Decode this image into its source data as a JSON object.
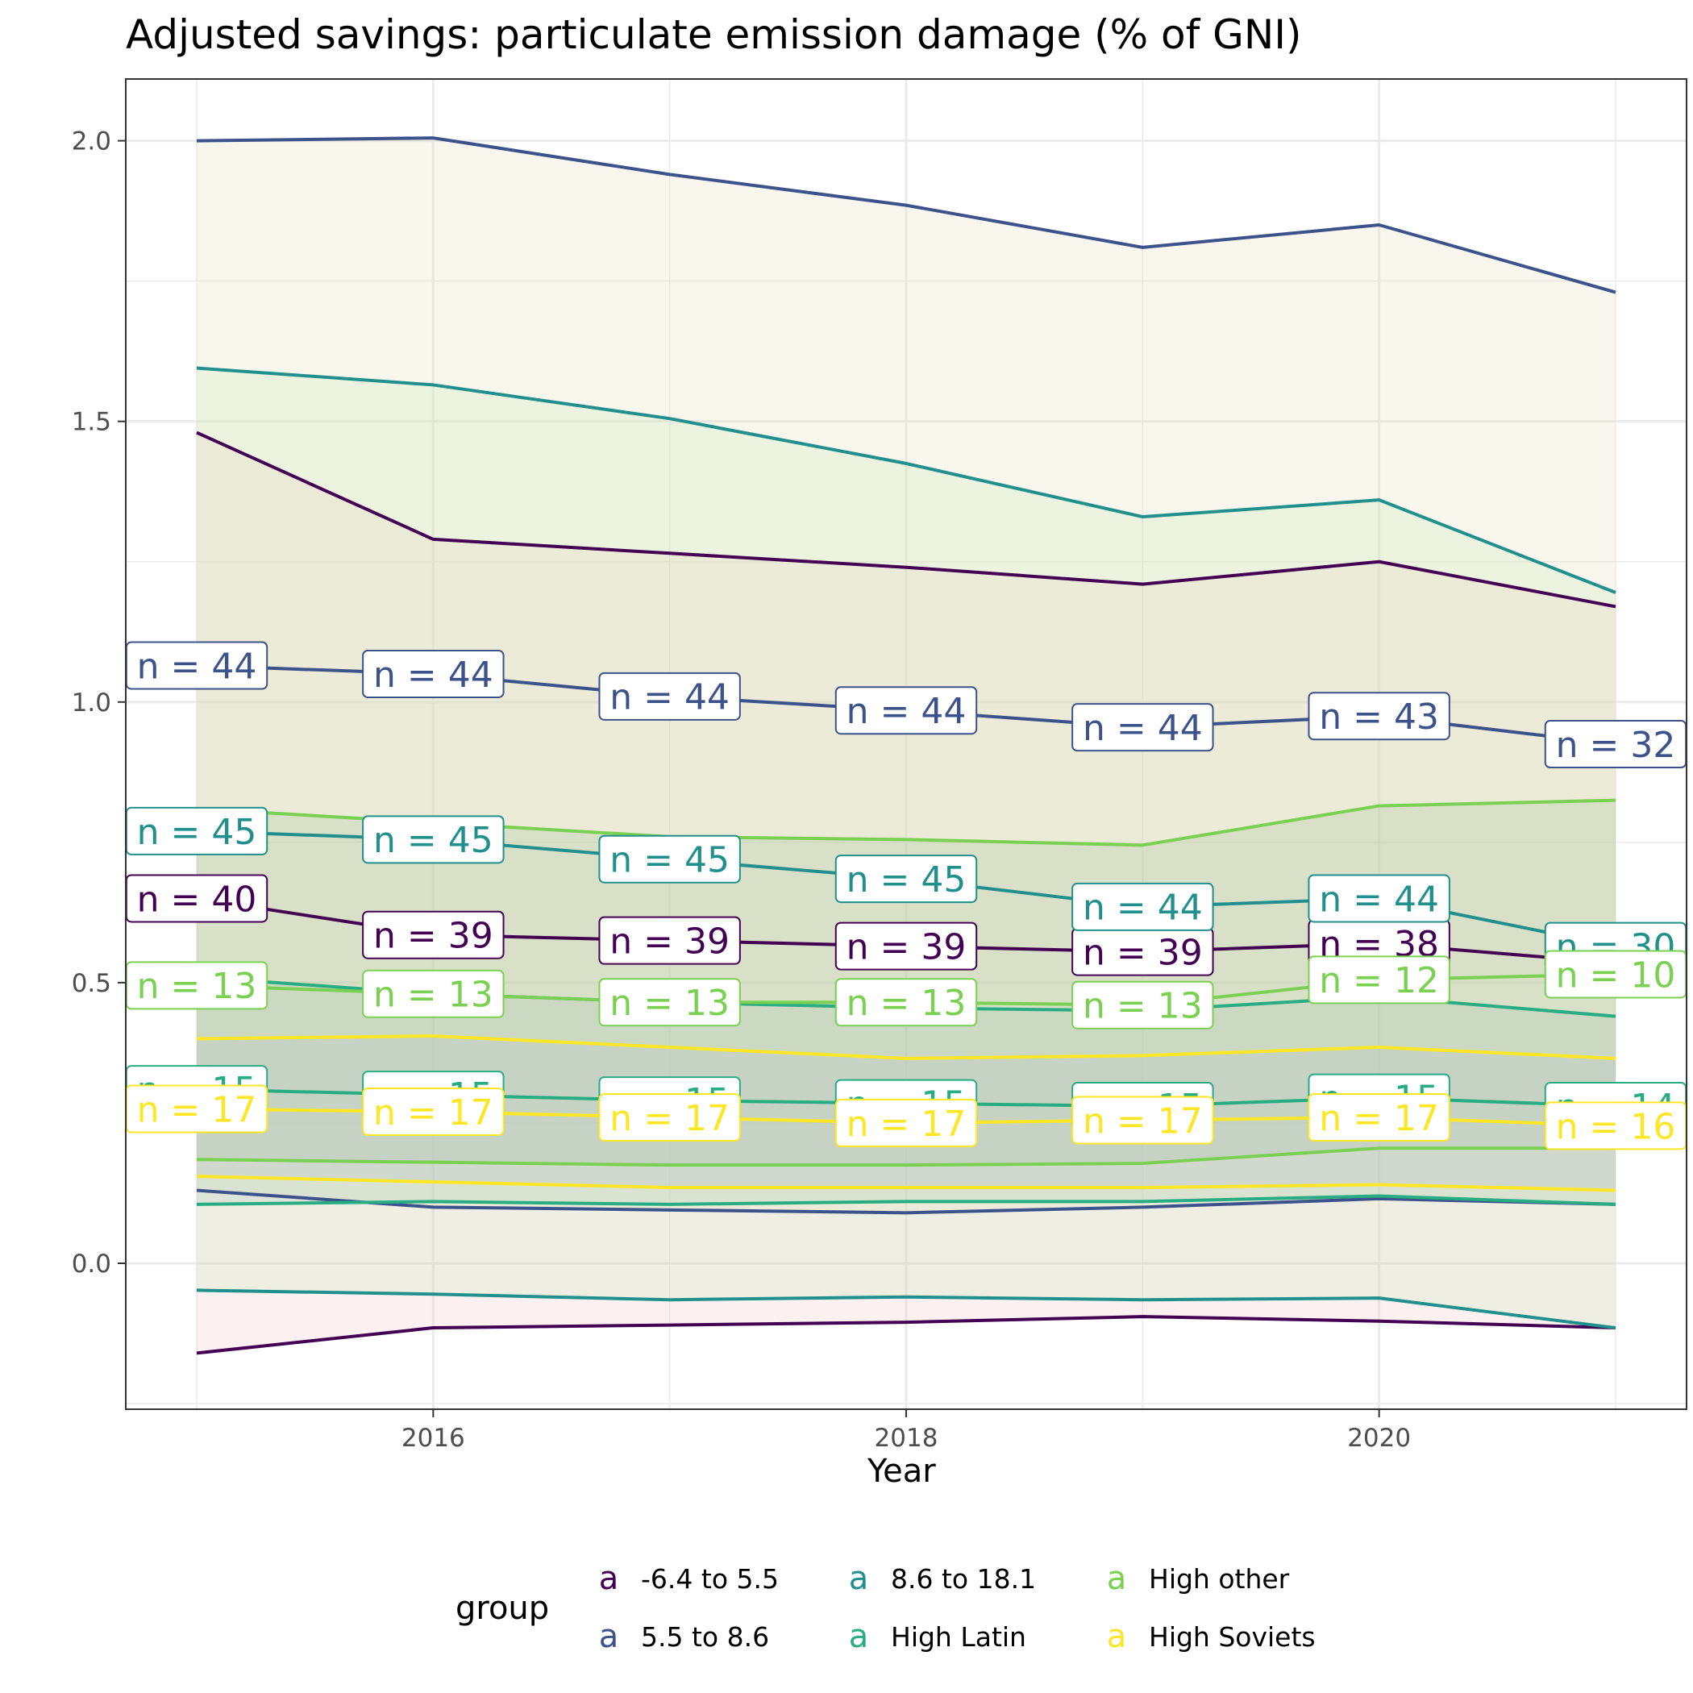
{
  "chart_data": {
    "type": "area",
    "title": "Adjusted savings: particulate emission damage (% of GNI)",
    "xlabel": "Year",
    "ylabel": "",
    "x": [
      2015,
      2016,
      2017,
      2018,
      2019,
      2020,
      2021
    ],
    "xlim": [
      2014.7,
      2021.3
    ],
    "ylim": [
      -0.26,
      2.11
    ],
    "x_ticks": [
      "2016",
      "2018",
      "2020"
    ],
    "x_tick_values": [
      2016,
      2018,
      2020
    ],
    "y_ticks": [
      "0.0",
      "0.5",
      "1.0",
      "1.5",
      "2.0"
    ],
    "y_tick_values": [
      0,
      0.5,
      1.0,
      1.5,
      2.0
    ],
    "grid": true,
    "legend_position": "bottom",
    "legend_title": "group",
    "legend_key_glyph": "a",
    "series": [
      {
        "name": "-6.4 to 5.5",
        "color": "#440154",
        "upper": [
          1.48,
          1.29,
          1.265,
          1.24,
          1.21,
          1.25,
          1.17
        ],
        "mean": [
          0.65,
          0.585,
          0.575,
          0.565,
          0.555,
          0.57,
          0.535
        ],
        "lower": [
          -0.16,
          -0.115,
          -0.11,
          -0.105,
          -0.095,
          -0.103,
          -0.115
        ],
        "n_labels": [
          "n = 40",
          "n = 39",
          "n = 39",
          "n = 39",
          "n = 39",
          "n = 38",
          ""
        ]
      },
      {
        "name": "5.5 to 8.6",
        "color": "#3B528B",
        "upper": [
          2.0,
          2.005,
          1.94,
          1.885,
          1.81,
          1.85,
          1.73
        ],
        "mean": [
          1.065,
          1.05,
          1.01,
          0.985,
          0.955,
          0.975,
          0.925
        ],
        "lower": [
          0.13,
          0.1,
          0.095,
          0.09,
          0.1,
          0.115,
          0.105
        ],
        "n_labels": [
          "n = 44",
          "n = 44",
          "n = 44",
          "n = 44",
          "n = 44",
          "n = 43",
          "n = 32"
        ]
      },
      {
        "name": "8.6 to 18.1",
        "color": "#21908C",
        "upper": [
          1.595,
          1.565,
          1.505,
          1.425,
          1.33,
          1.36,
          1.195
        ],
        "mean": [
          0.77,
          0.755,
          0.72,
          0.685,
          0.635,
          0.65,
          0.565
        ],
        "lower": [
          -0.048,
          -0.055,
          -0.065,
          -0.06,
          -0.065,
          -0.062,
          -0.115
        ],
        "n_labels": [
          "n = 45",
          "n = 45",
          "n = 45",
          "n = 45",
          "n = 44",
          "n = 44",
          "n = 30"
        ]
      },
      {
        "name": "High Latin",
        "color": "#27AD81",
        "upper": [
          0.51,
          0.48,
          0.465,
          0.455,
          0.45,
          0.475,
          0.44
        ],
        "mean": [
          0.31,
          0.3,
          0.29,
          0.285,
          0.28,
          0.295,
          0.28
        ],
        "lower": [
          0.105,
          0.11,
          0.105,
          0.11,
          0.11,
          0.12,
          0.105
        ],
        "n_labels": [
          "n = 15",
          "n = 15",
          "n = 15",
          "n = 15",
          "n = 15",
          "n = 15",
          "n = 14"
        ]
      },
      {
        "name": "High other",
        "color": "#7AD151",
        "upper": [
          0.81,
          0.785,
          0.76,
          0.755,
          0.745,
          0.815,
          0.825
        ],
        "mean": [
          0.495,
          0.48,
          0.465,
          0.465,
          0.46,
          0.505,
          0.515
        ],
        "lower": [
          0.185,
          0.18,
          0.175,
          0.175,
          0.178,
          0.205,
          0.205
        ],
        "n_labels": [
          "n = 13",
          "n = 13",
          "n = 13",
          "n = 13",
          "n = 13",
          "n = 12",
          "n = 10"
        ]
      },
      {
        "name": "High Soviets",
        "color": "#FDE725",
        "upper": [
          0.4,
          0.405,
          0.385,
          0.365,
          0.37,
          0.385,
          0.365
        ],
        "mean": [
          0.275,
          0.27,
          0.26,
          0.25,
          0.255,
          0.26,
          0.245
        ],
        "lower": [
          0.155,
          0.145,
          0.135,
          0.135,
          0.135,
          0.14,
          0.13
        ],
        "n_labels": [
          "n = 17",
          "n = 17",
          "n = 17",
          "n = 17",
          "n = 17",
          "n = 17",
          "n = 16"
        ]
      }
    ]
  }
}
